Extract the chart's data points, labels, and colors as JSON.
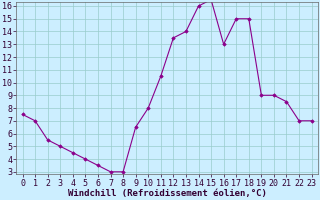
{
  "x": [
    0,
    1,
    2,
    3,
    4,
    5,
    6,
    7,
    8,
    9,
    10,
    11,
    12,
    13,
    14,
    15,
    16,
    17,
    18,
    19,
    20,
    21,
    22,
    23
  ],
  "y": [
    7.5,
    7.0,
    5.5,
    5.0,
    4.5,
    4.0,
    3.5,
    3.0,
    3.0,
    6.5,
    8.0,
    10.5,
    13.5,
    14.0,
    16.0,
    16.5,
    13.0,
    15.0,
    15.0,
    9.0,
    9.0,
    8.5,
    7.0,
    7.0
  ],
  "line_color": "#8b008b",
  "marker": "D",
  "marker_size": 1.8,
  "bg_color": "#cceeff",
  "grid_color": "#99cccc",
  "xlabel": "Windchill (Refroidissement éolien,°C)",
  "ylim_min": 3,
  "ylim_max": 16,
  "xlim_min": -0.5,
  "xlim_max": 23.5,
  "yticks": [
    3,
    4,
    5,
    6,
    7,
    8,
    9,
    10,
    11,
    12,
    13,
    14,
    15,
    16
  ],
  "xticks": [
    0,
    1,
    2,
    3,
    4,
    5,
    6,
    7,
    8,
    9,
    10,
    11,
    12,
    13,
    14,
    15,
    16,
    17,
    18,
    19,
    20,
    21,
    22,
    23
  ],
  "xlabel_fontsize": 6.5,
  "tick_fontsize": 6.0,
  "line_width": 0.8
}
